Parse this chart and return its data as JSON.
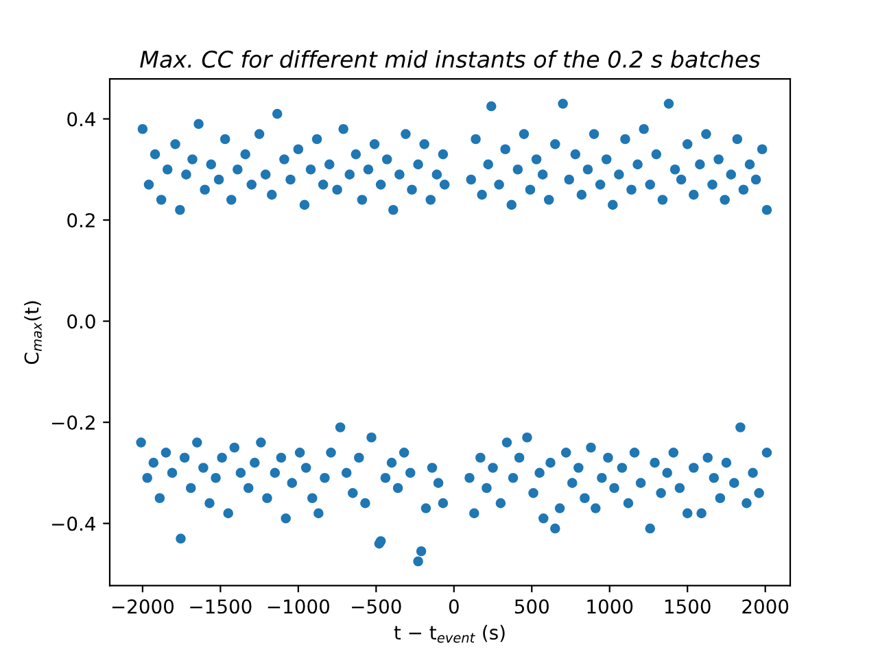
{
  "chart_data": {
    "type": "scatter",
    "title": "Max. CC for different mid instants of the 0.2 s batches",
    "xlabel": "t − t$_{event}$ (s)",
    "ylabel": "C$_{max}$(t)",
    "xlim": [
      -2211,
      2160
    ],
    "xticks": [
      {
        "value": -2000,
        "label": "−2000"
      },
      {
        "value": -1500,
        "label": "−1500"
      },
      {
        "value": -1000,
        "label": "−1000"
      },
      {
        "value": -500,
        "label": "−500"
      },
      0,
      500,
      1000,
      1500,
      2000
    ],
    "ylim": [
      -0.523,
      0.479
    ],
    "yticks": [
      {
        "value": -0.4,
        "label": "−0.4"
      },
      {
        "value": -0.2,
        "label": "−0.2"
      },
      {
        "value": 0.0,
        "label": "0.0"
      },
      {
        "value": 0.2,
        "label": "0.2"
      },
      {
        "value": 0.4,
        "label": "0.4"
      }
    ],
    "grid": false,
    "marker": "circle",
    "series": [
      {
        "color": "#1f77b4",
        "x": [
          -2000,
          -1960,
          -1920,
          -1880,
          -1840,
          -1790,
          -1760,
          -1720,
          -1680,
          -1640,
          -1600,
          -1560,
          -1510,
          -1470,
          -1430,
          -1390,
          -1340,
          -1300,
          -1250,
          -1210,
          -1170,
          -1135,
          -1090,
          -1050,
          -1000,
          -960,
          -920,
          -880,
          -840,
          -800,
          -750,
          -710,
          -670,
          -630,
          -590,
          -550,
          -510,
          -470,
          -430,
          -390,
          -350,
          -310,
          -270,
          -230,
          -190,
          -150,
          -110,
          -70,
          -60,
          110,
          140,
          180,
          220,
          240,
          290,
          330,
          370,
          410,
          450,
          490,
          530,
          570,
          610,
          650,
          700,
          740,
          780,
          820,
          860,
          900,
          940,
          980,
          1020,
          1060,
          1100,
          1140,
          1180,
          1220,
          1260,
          1300,
          1340,
          1380,
          1420,
          1460,
          1500,
          1540,
          1580,
          1620,
          1660,
          1700,
          1740,
          1780,
          1820,
          1860,
          1900,
          1940,
          1980,
          2010
        ],
        "values": [
          0.38,
          0.27,
          0.33,
          0.24,
          0.3,
          0.35,
          0.22,
          0.29,
          0.32,
          0.39,
          0.26,
          0.31,
          0.28,
          0.36,
          0.24,
          0.3,
          0.33,
          0.27,
          0.37,
          0.29,
          0.25,
          0.41,
          0.32,
          0.28,
          0.34,
          0.23,
          0.3,
          0.36,
          0.27,
          0.31,
          0.26,
          0.38,
          0.29,
          0.33,
          0.24,
          0.3,
          0.35,
          0.27,
          0.32,
          0.22,
          0.29,
          0.37,
          0.26,
          0.31,
          0.35,
          0.24,
          0.29,
          0.33,
          0.27,
          0.28,
          0.36,
          0.25,
          0.31,
          0.425,
          0.27,
          0.34,
          0.23,
          0.3,
          0.37,
          0.26,
          0.32,
          0.29,
          0.24,
          0.35,
          0.43,
          0.28,
          0.33,
          0.25,
          0.3,
          0.37,
          0.27,
          0.32,
          0.23,
          0.29,
          0.36,
          0.26,
          0.31,
          0.38,
          0.27,
          0.33,
          0.24,
          0.43,
          0.3,
          0.28,
          0.35,
          0.25,
          0.31,
          0.37,
          0.27,
          0.32,
          0.24,
          0.29,
          0.36,
          0.26,
          0.31,
          0.28,
          0.34,
          0.22
        ]
      },
      {
        "color": "#1f77b4",
        "x": [
          -2010,
          -1970,
          -1930,
          -1890,
          -1850,
          -1810,
          -1755,
          -1730,
          -1690,
          -1650,
          -1610,
          -1570,
          -1530,
          -1490,
          -1450,
          -1410,
          -1370,
          -1320,
          -1280,
          -1240,
          -1200,
          -1150,
          -1110,
          -1080,
          -1040,
          -990,
          -950,
          -910,
          -870,
          -830,
          -790,
          -730,
          -690,
          -650,
          -610,
          -570,
          -530,
          -480,
          -470,
          -440,
          -400,
          -360,
          -320,
          -280,
          -230,
          -210,
          -180,
          -140,
          -100,
          -70,
          100,
          130,
          170,
          210,
          250,
          300,
          340,
          380,
          420,
          470,
          510,
          550,
          575,
          620,
          650,
          680,
          720,
          760,
          800,
          840,
          880,
          910,
          950,
          990,
          1030,
          1080,
          1120,
          1160,
          1200,
          1260,
          1290,
          1330,
          1370,
          1410,
          1450,
          1500,
          1540,
          1590,
          1630,
          1670,
          1710,
          1750,
          1800,
          1840,
          1880,
          1920,
          1960,
          2010
        ],
        "values": [
          -0.24,
          -0.31,
          -0.28,
          -0.35,
          -0.26,
          -0.3,
          -0.43,
          -0.27,
          -0.33,
          -0.24,
          -0.29,
          -0.36,
          -0.31,
          -0.27,
          -0.38,
          -0.25,
          -0.3,
          -0.33,
          -0.28,
          -0.24,
          -0.35,
          -0.3,
          -0.27,
          -0.39,
          -0.32,
          -0.26,
          -0.29,
          -0.35,
          -0.38,
          -0.31,
          -0.26,
          -0.21,
          -0.3,
          -0.34,
          -0.27,
          -0.36,
          -0.23,
          -0.44,
          -0.435,
          -0.31,
          -0.28,
          -0.33,
          -0.26,
          -0.3,
          -0.475,
          -0.455,
          -0.37,
          -0.29,
          -0.32,
          -0.36,
          -0.31,
          -0.38,
          -0.27,
          -0.33,
          -0.29,
          -0.36,
          -0.24,
          -0.31,
          -0.27,
          -0.23,
          -0.34,
          -0.3,
          -0.39,
          -0.28,
          -0.41,
          -0.37,
          -0.26,
          -0.32,
          -0.29,
          -0.35,
          -0.25,
          -0.37,
          -0.31,
          -0.27,
          -0.33,
          -0.29,
          -0.36,
          -0.26,
          -0.32,
          -0.41,
          -0.28,
          -0.34,
          -0.3,
          -0.26,
          -0.33,
          -0.38,
          -0.29,
          -0.38,
          -0.27,
          -0.31,
          -0.35,
          -0.28,
          -0.32,
          -0.21,
          -0.36,
          -0.3,
          -0.34,
          -0.26
        ]
      }
    ]
  }
}
